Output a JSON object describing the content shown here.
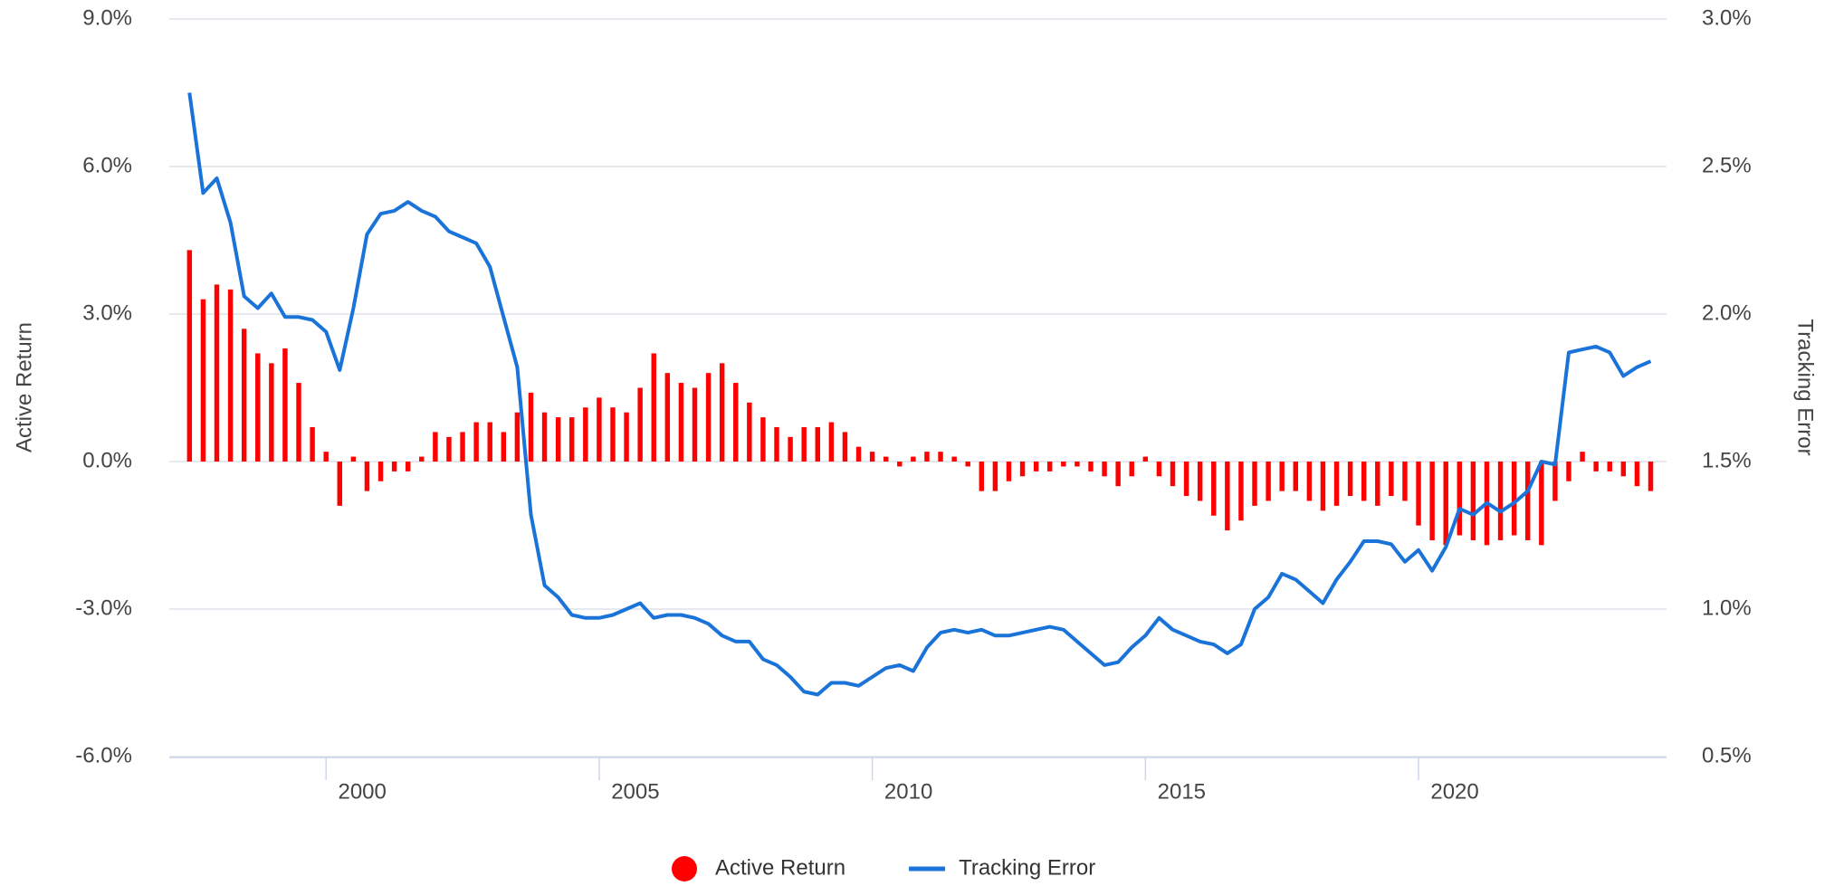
{
  "chart_data": {
    "type": "combo",
    "y_label": "Active Return",
    "y2_label": "Tracking Error",
    "legend": "bottom",
    "grid": true,
    "xlim": [
      1997.13,
      2024.54
    ],
    "xticks": [
      2000,
      2005,
      2010,
      2015,
      2020
    ],
    "ylim": [
      -6,
      9
    ],
    "yticks": [
      {
        "value": -6,
        "label": "-6.0%"
      },
      {
        "value": -3,
        "label": "-3.0%"
      },
      {
        "value": 0,
        "label": "0.0%"
      },
      {
        "value": 3,
        "label": "3.0%"
      },
      {
        "value": 6,
        "label": "6.0%"
      },
      {
        "value": 9,
        "label": "9.0%"
      }
    ],
    "y2lim": [
      0.5,
      3.0
    ],
    "y2ticks": [
      {
        "value": 0.5,
        "label": "0.5%"
      },
      {
        "value": 1.0,
        "label": "1.0%"
      },
      {
        "value": 1.5,
        "label": "1.5%"
      },
      {
        "value": 2.0,
        "label": "2.0%"
      },
      {
        "value": 2.5,
        "label": "2.5%"
      },
      {
        "value": 3.0,
        "label": "3.0%"
      }
    ],
    "x": [
      1997.5,
      1997.75,
      1998,
      1998.25,
      1998.5,
      1998.75,
      1999,
      1999.25,
      1999.5,
      1999.75,
      2000,
      2000.25,
      2000.5,
      2000.75,
      2001,
      2001.25,
      2001.5,
      2001.75,
      2002,
      2002.25,
      2002.5,
      2002.75,
      2003,
      2003.25,
      2003.5,
      2003.75,
      2004,
      2004.25,
      2004.5,
      2004.75,
      2005,
      2005.25,
      2005.5,
      2005.75,
      2006,
      2006.25,
      2006.5,
      2006.75,
      2007,
      2007.25,
      2007.5,
      2007.75,
      2008,
      2008.25,
      2008.5,
      2008.75,
      2009,
      2009.25,
      2009.5,
      2009.75,
      2010,
      2010.25,
      2010.5,
      2010.75,
      2011,
      2011.25,
      2011.5,
      2011.75,
      2012,
      2012.25,
      2012.5,
      2012.75,
      2013,
      2013.25,
      2013.5,
      2013.75,
      2014,
      2014.25,
      2014.5,
      2014.75,
      2015,
      2015.25,
      2015.5,
      2015.75,
      2016,
      2016.25,
      2016.5,
      2016.75,
      2017,
      2017.25,
      2017.5,
      2017.75,
      2018,
      2018.25,
      2018.5,
      2018.75,
      2019,
      2019.25,
      2019.5,
      2019.75,
      2020,
      2020.25,
      2020.5,
      2020.75,
      2021,
      2021.25,
      2021.5,
      2021.75,
      2022,
      2022.25,
      2022.5,
      2022.75,
      2023,
      2023.25,
      2023.5,
      2023.75,
      2024,
      2024.25
    ],
    "series": [
      {
        "name": "Active Return",
        "type": "bar",
        "color": "#ff0000",
        "values": [
          4.3,
          3.3,
          3.6,
          3.5,
          2.7,
          2.2,
          2.0,
          2.3,
          1.6,
          0.7,
          0.2,
          -0.9,
          0.1,
          -0.6,
          -0.4,
          -0.2,
          -0.2,
          0.1,
          0.6,
          0.5,
          0.6,
          0.8,
          0.8,
          0.6,
          1.0,
          1.4,
          1.0,
          0.9,
          0.9,
          1.1,
          1.3,
          1.1,
          1.0,
          1.5,
          2.2,
          1.8,
          1.6,
          1.5,
          1.8,
          2.0,
          1.6,
          1.2,
          0.9,
          0.7,
          0.5,
          0.7,
          0.7,
          0.8,
          0.6,
          0.3,
          0.2,
          0.1,
          -0.1,
          0.1,
          0.2,
          0.2,
          0.1,
          -0.1,
          -0.6,
          -0.6,
          -0.4,
          -0.3,
          -0.2,
          -0.2,
          -0.1,
          -0.1,
          -0.2,
          -0.3,
          -0.5,
          -0.3,
          0.1,
          -0.3,
          -0.5,
          -0.7,
          -0.8,
          -1.1,
          -1.4,
          -1.2,
          -0.9,
          -0.8,
          -0.6,
          -0.6,
          -0.8,
          -1.0,
          -0.9,
          -0.7,
          -0.8,
          -0.9,
          -0.7,
          -0.8,
          -1.3,
          -1.6,
          -1.7,
          -1.5,
          -1.6,
          -1.7,
          -1.6,
          -1.5,
          -1.6,
          -1.7,
          -0.8,
          -0.4,
          0.2,
          -0.2,
          -0.2,
          -0.3,
          -0.5,
          -0.6
        ]
      },
      {
        "name": "Tracking Error",
        "type": "line",
        "axis": "y2",
        "color": "#1a73d9",
        "values": [
          2.75,
          2.41,
          2.46,
          2.31,
          2.06,
          2.02,
          2.07,
          1.99,
          1.99,
          1.98,
          1.94,
          1.81,
          2.02,
          2.27,
          2.34,
          2.35,
          2.38,
          2.35,
          2.33,
          2.28,
          2.26,
          2.24,
          2.16,
          1.99,
          1.82,
          1.32,
          1.08,
          1.04,
          0.98,
          0.97,
          0.97,
          0.98,
          1.0,
          1.02,
          0.97,
          0.98,
          0.98,
          0.97,
          0.95,
          0.91,
          0.89,
          0.89,
          0.83,
          0.81,
          0.77,
          0.72,
          0.71,
          0.75,
          0.75,
          0.74,
          0.77,
          0.8,
          0.81,
          0.79,
          0.87,
          0.92,
          0.93,
          0.92,
          0.93,
          0.91,
          0.91,
          0.92,
          0.93,
          0.94,
          0.93,
          0.89,
          0.85,
          0.81,
          0.82,
          0.87,
          0.91,
          0.97,
          0.93,
          0.91,
          0.89,
          0.88,
          0.85,
          0.88,
          1.0,
          1.04,
          1.12,
          1.1,
          1.06,
          1.02,
          1.1,
          1.16,
          1.23,
          1.23,
          1.22,
          1.16,
          1.2,
          1.13,
          1.21,
          1.34,
          1.32,
          1.36,
          1.33,
          1.36,
          1.4,
          1.5,
          1.49,
          1.87,
          1.88,
          1.89,
          1.87,
          1.79,
          1.82,
          1.84
        ]
      }
    ]
  }
}
